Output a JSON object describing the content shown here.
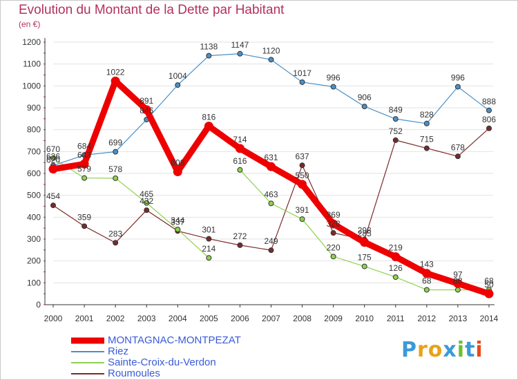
{
  "title": "Evolution du Montant de la Dette par Habitant",
  "subtitle": "(en €)",
  "logo": {
    "text": "Proxiti",
    "colors": [
      "#3a9ad9",
      "#e8a21a",
      "#e8a21a",
      "#3a9ad9",
      "#6cbf2a",
      "#3a9ad9",
      "#e84a1a"
    ]
  },
  "chart_data": {
    "type": "line",
    "x": [
      "2000",
      "2001",
      "2002",
      "2003",
      "2004",
      "2005",
      "2006",
      "2007",
      "2008",
      "2009",
      "2010",
      "2011",
      "2012",
      "2013",
      "2014"
    ],
    "ylim": [
      0,
      1200
    ],
    "yticks": [
      0,
      100,
      200,
      300,
      400,
      500,
      600,
      700,
      800,
      900,
      1000,
      1100,
      1200
    ],
    "grid": true,
    "legend_position": "bottom-left",
    "series": [
      {
        "name": "MONTAGNAC-MONTPEZAT",
        "color": "#ee0000",
        "highlight": true,
        "values": [
          620,
          643,
          1022,
          891,
          608,
          816,
          714,
          631,
          550,
          369,
          285,
          219,
          143,
          97,
          50
        ],
        "labels": [
          "620",
          "643",
          "1022",
          "891",
          "608",
          "816",
          "714",
          "631",
          "550",
          "369",
          "285",
          "219",
          "143",
          "97",
          "50"
        ]
      },
      {
        "name": "Riez",
        "color": "#4a90c8",
        "values": [
          636,
          684,
          699,
          846,
          1004,
          1138,
          1147,
          1120,
          1017,
          996,
          906,
          849,
          828,
          996,
          888
        ],
        "labels": [
          "636",
          "684",
          "699",
          "846",
          "1004",
          "1138",
          "1147",
          "1120",
          "1017",
          "996",
          "906",
          "849",
          "828",
          "996",
          "888"
        ]
      },
      {
        "name": "Sainte-Croix-du-Verdon",
        "color": "#8fd14f",
        "values": [
          670,
          579,
          578,
          465,
          344,
          214,
          null,
          null,
          null,
          null,
          null,
          null,
          null,
          null,
          null
        ],
        "labels": [
          "670",
          "579",
          "578",
          "465",
          "344",
          "214",
          "",
          "",
          "",
          "",
          "",
          "",
          "",
          "",
          ""
        ],
        "values_b": [
          null,
          null,
          null,
          null,
          null,
          null,
          616,
          463,
          391,
          220,
          175,
          126,
          68,
          68,
          68
        ],
        "labels_b": [
          "",
          "",
          "",
          "",
          "",
          "",
          "616",
          "463",
          "391",
          "220",
          "175",
          "126",
          "68",
          "68",
          "68"
        ]
      },
      {
        "name": "Roumoules",
        "color": "#7a2a2a",
        "values": [
          454,
          359,
          283,
          432,
          337,
          301,
          272,
          249,
          637,
          328,
          298,
          752,
          715,
          678,
          806
        ],
        "labels": [
          "454",
          "359",
          "283",
          "432",
          "337",
          "301",
          "272",
          "249",
          "637",
          "328",
          "298",
          "752",
          "715",
          "678",
          "806"
        ]
      }
    ]
  }
}
